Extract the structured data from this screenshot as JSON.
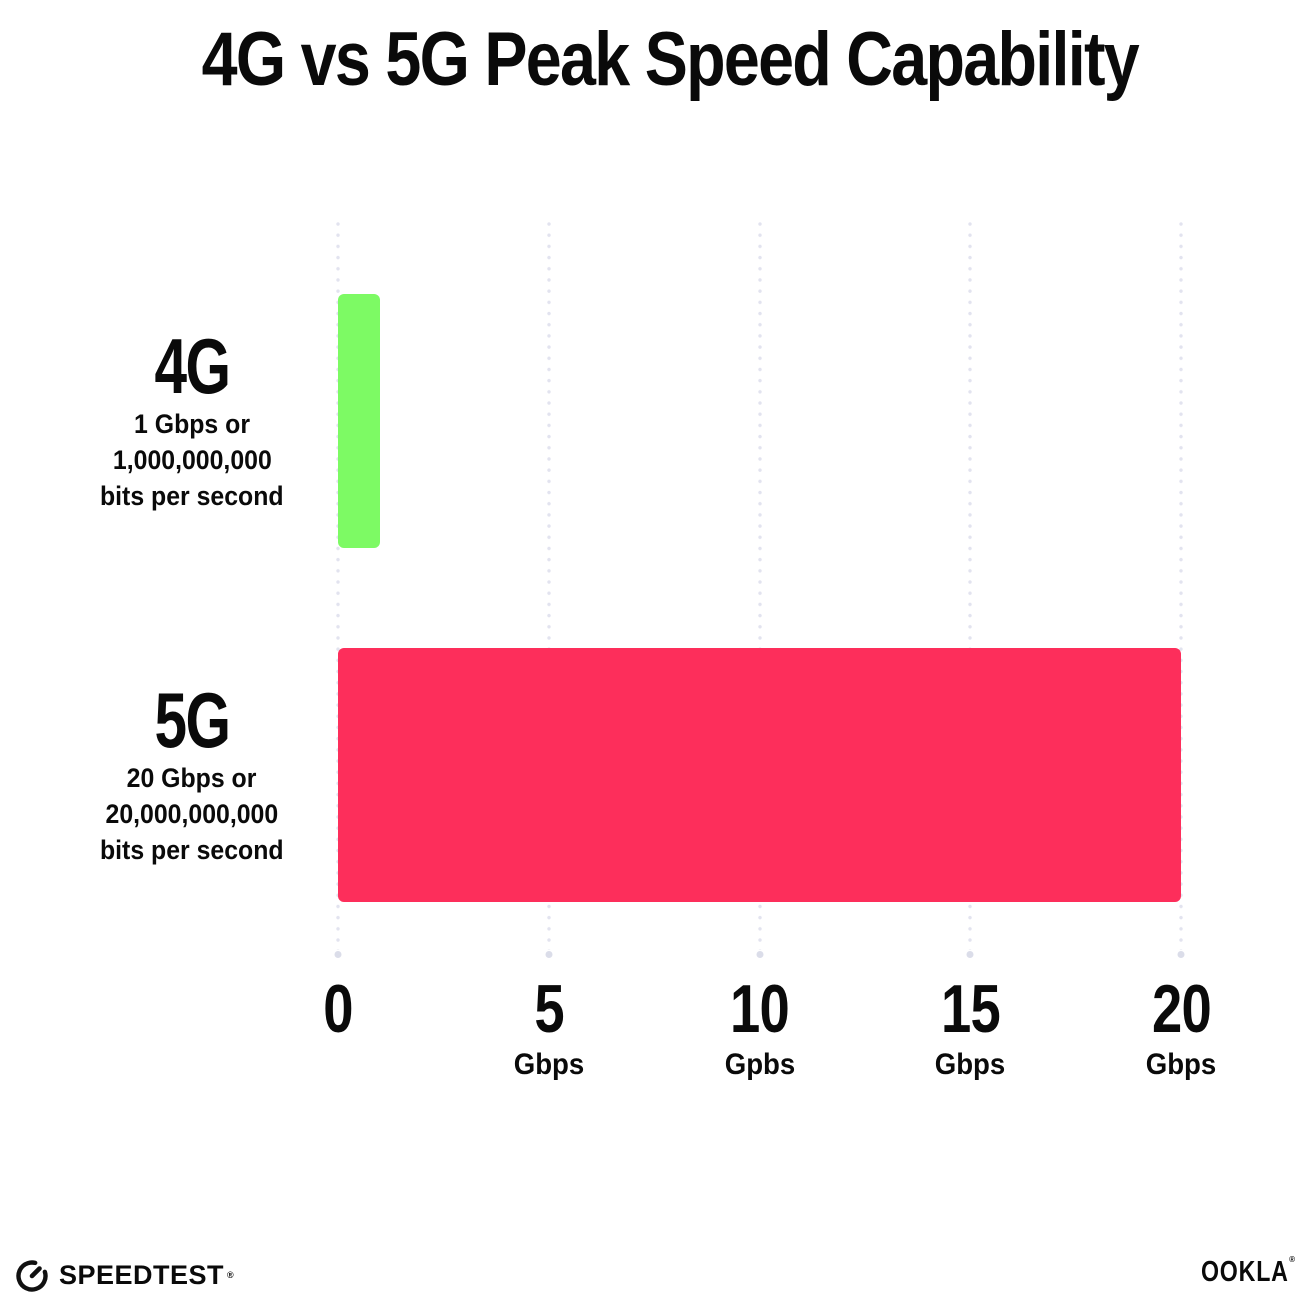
{
  "title": "4G vs 5G Peak Speed Capability",
  "chart_data": {
    "type": "bar",
    "orientation": "horizontal",
    "title": "4G vs 5G Peak Speed Capability",
    "categories": [
      "4G",
      "5G"
    ],
    "values": [
      1,
      20
    ],
    "value_unit": "Gbps",
    "xlim": [
      0,
      20
    ],
    "grid": {
      "style": "dotted",
      "direction": "vertical",
      "color": "#e2e3ef"
    },
    "legend": "none",
    "x_ticks": [
      {
        "label": "0",
        "unit": "",
        "value": 0
      },
      {
        "label": "5",
        "unit": "Gbps",
        "value": 5
      },
      {
        "label": "10",
        "unit": "Gpbs",
        "value": 10
      },
      {
        "label": "15",
        "unit": "Gbps",
        "value": 15
      },
      {
        "label": "20",
        "unit": "Gbps",
        "value": 20
      }
    ],
    "bars": [
      {
        "category": "4G",
        "value": 1,
        "color": "#7dfa64",
        "sublabel_lines": [
          "1 Gbps or",
          "1,000,000,000",
          "bits per second"
        ]
      },
      {
        "category": "5G",
        "value": 20,
        "color": "#fd2e5b",
        "sublabel_lines": [
          "20 Gbps or",
          "20,000,000,000",
          "bits per second"
        ]
      }
    ]
  },
  "footer": {
    "speedtest_label": "SPEEDTEST",
    "speedtest_mark": "®",
    "ookla_label": "OOKLA",
    "ookla_mark": "®"
  },
  "colors": {
    "bar_4g": "#7dfa64",
    "bar_5g": "#fd2e5b",
    "grid_dot": "#e2e3ef",
    "grid_end_dot": "#dbdde9",
    "text": "#0a0a0a",
    "background": "#ffffff"
  }
}
